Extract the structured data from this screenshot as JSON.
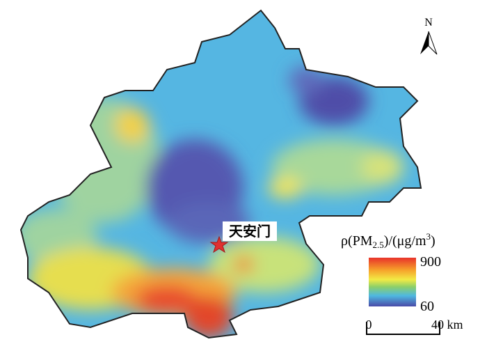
{
  "map": {
    "north_label": "N",
    "landmark": "天安门",
    "legend": {
      "title_parts": [
        "ρ(PM",
        "2.5",
        ")/(μg/m",
        "3",
        ")"
      ],
      "max": 900,
      "min": 60
    },
    "scale_bar": {
      "start": "0",
      "end": "40 km"
    }
  }
}
